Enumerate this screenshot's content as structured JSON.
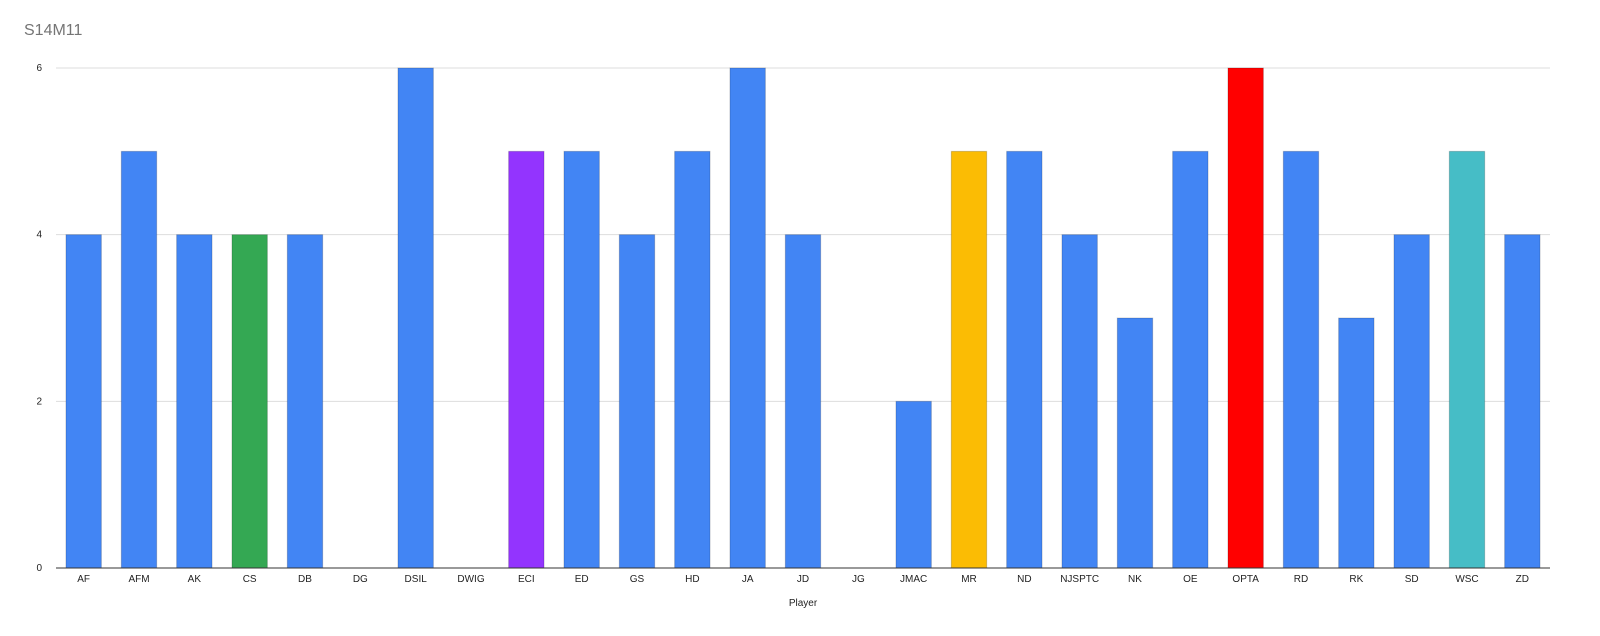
{
  "chart_data": {
    "type": "bar",
    "title": "S14M11",
    "xlabel": "Player",
    "ylabel": "",
    "ylim": [
      0,
      6
    ],
    "y_ticks": [
      0,
      2,
      4,
      6
    ],
    "grid": true,
    "legend": "none",
    "categories": [
      "AF",
      "AFM",
      "AK",
      "CS",
      "DB",
      "DG",
      "DSIL",
      "DWIG",
      "ECI",
      "ED",
      "GS",
      "HD",
      "JA",
      "JD",
      "JG",
      "JMAC",
      "MR",
      "ND",
      "NJSPTC",
      "NK",
      "OE",
      "OPTA",
      "RD",
      "RK",
      "SD",
      "WSC",
      "ZD"
    ],
    "values": [
      4,
      5,
      4,
      4,
      4,
      0,
      6,
      0,
      5,
      5,
      4,
      5,
      6,
      4,
      0,
      2,
      5,
      5,
      4,
      3,
      5,
      6,
      5,
      3,
      4,
      5,
      4
    ],
    "colors": [
      "#4285f4",
      "#4285f4",
      "#4285f4",
      "#34a853",
      "#4285f4",
      "#4285f4",
      "#4285f4",
      "#4285f4",
      "#9334fe",
      "#4285f4",
      "#4285f4",
      "#4285f4",
      "#4285f4",
      "#4285f4",
      "#4285f4",
      "#4285f4",
      "#fbbc04",
      "#4285f4",
      "#4285f4",
      "#4285f4",
      "#4285f4",
      "#ff0000",
      "#4285f4",
      "#4285f4",
      "#4285f4",
      "#46bdc6",
      "#4285f4"
    ]
  }
}
